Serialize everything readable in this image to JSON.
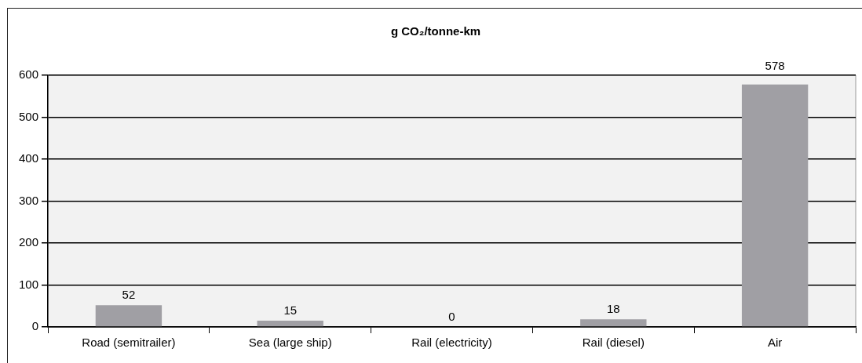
{
  "chart_data": {
    "type": "bar",
    "title": "g CO₂/tonne-km",
    "categories": [
      "Road (semitrailer)",
      "Sea (large ship)",
      "Rail (electricity)",
      "Rail (diesel)",
      "Air"
    ],
    "values": [
      52,
      15,
      0,
      18,
      578
    ],
    "color": "#a09fa4",
    "ylim": [
      0,
      600
    ],
    "yticks": [
      0,
      100,
      200,
      300,
      400,
      500,
      600
    ],
    "grid": "y",
    "data_labels": true,
    "legend": false
  }
}
